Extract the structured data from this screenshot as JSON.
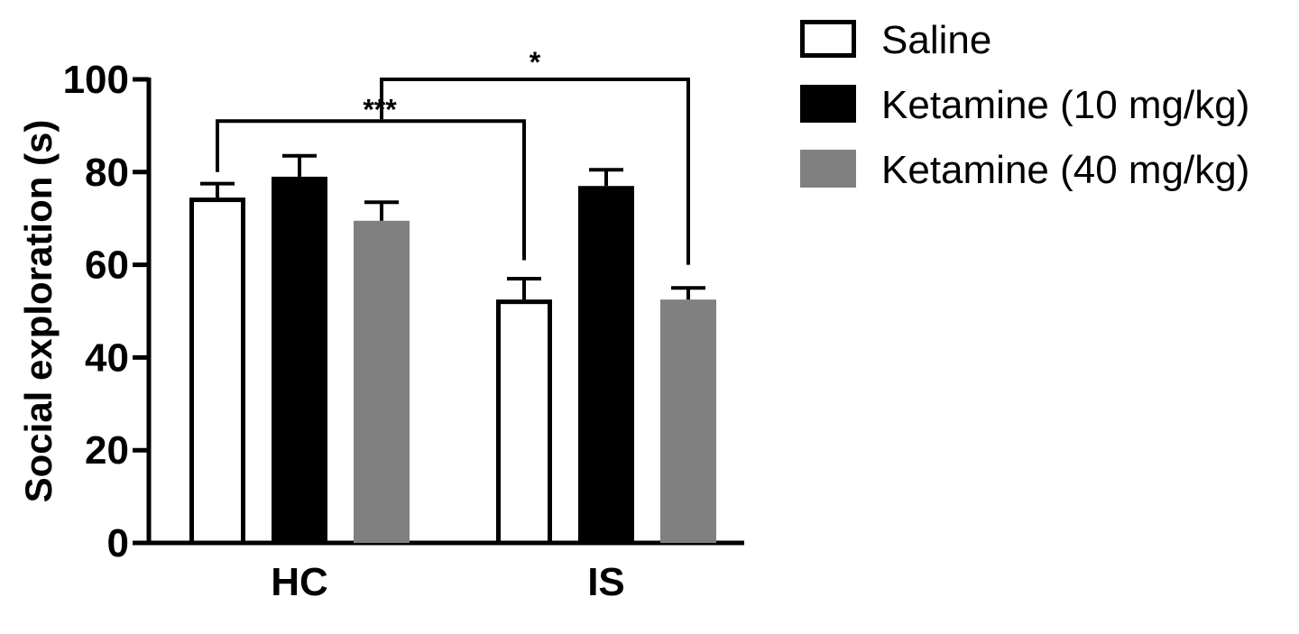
{
  "chart_data": {
    "type": "bar",
    "title": "",
    "xlabel": "",
    "ylabel": "Social exploration (s)",
    "ylim": [
      0,
      100
    ],
    "yticks": [
      0,
      20,
      40,
      60,
      80,
      100
    ],
    "categories": [
      "HC",
      "IS"
    ],
    "legend_position": "top-right",
    "series": [
      {
        "name": "Saline",
        "values": [
          74.5,
          52.5
        ],
        "errors": [
          3,
          4.5
        ],
        "fill": "#ffffff",
        "stroke": "#000000"
      },
      {
        "name": "Ketamine (10 mg/kg)",
        "values": [
          79,
          77
        ],
        "errors": [
          4.5,
          3.5
        ],
        "fill": "#000000",
        "stroke": "#000000"
      },
      {
        "name": "Ketamine (40 mg/kg)",
        "values": [
          69.5,
          52.5
        ],
        "errors": [
          4,
          2.5
        ],
        "fill": "#808080",
        "stroke": "#808080"
      }
    ],
    "annotations": [
      {
        "label": "***",
        "from": {
          "category": 0,
          "series": 0
        },
        "to": {
          "category": 1,
          "series": 0
        },
        "y": 91
      },
      {
        "label": "*",
        "from": {
          "category": 0.5,
          "series": 0
        },
        "to": {
          "category": 1,
          "series": 2
        },
        "y": 100
      }
    ]
  }
}
